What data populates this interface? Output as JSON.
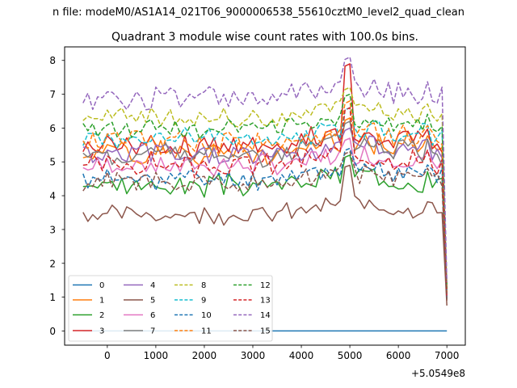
{
  "chart_data": {
    "type": "line",
    "suptitle": "n file: modeM0/AS1A14_021T06_9000006538_55610cztM0_level2_quad_clean",
    "title": "Quadrant 3 module wise count rates with 100.0s bins.",
    "xlabel": "",
    "ylabel": "",
    "x_offset_text": "+5.0549e8",
    "xlim": [
      -880,
      7380
    ],
    "ylim": [
      -0.42,
      8.4
    ],
    "x_ticks": [
      0,
      1000,
      2000,
      3000,
      4000,
      5000,
      6000,
      7000
    ],
    "x_tick_labels": [
      "0",
      "1000",
      "2000",
      "3000",
      "4000",
      "5000",
      "6000",
      "7000"
    ],
    "y_ticks": [
      0,
      1,
      2,
      3,
      4,
      5,
      6,
      7,
      8
    ],
    "y_tick_labels": [
      "0",
      "1",
      "2",
      "3",
      "4",
      "5",
      "6",
      "7",
      "8"
    ],
    "grid": false,
    "legend": "lower-left, 4 columns",
    "x": {
      "start": -500,
      "step": 100,
      "end": 7000
    },
    "series": [
      {
        "name": "0",
        "color": "#1f77b4",
        "dash": "solid",
        "base": 0.0,
        "peak": 0.0,
        "last": 0.0,
        "noise": 0.0,
        "seed": 1
      },
      {
        "name": "1",
        "color": "#ff7f0e",
        "dash": "solid",
        "base": 5.3,
        "peak": 6.3,
        "last": 1.1,
        "noise": 0.3,
        "seed": 2
      },
      {
        "name": "2",
        "color": "#2ca02c",
        "dash": "solid",
        "base": 4.3,
        "peak": 5.2,
        "last": 0.95,
        "noise": 0.25,
        "seed": 3
      },
      {
        "name": "3",
        "color": "#d62728",
        "dash": "solid",
        "base": 5.5,
        "peak": 7.9,
        "last": 1.2,
        "noise": 0.3,
        "seed": 4
      },
      {
        "name": "4",
        "color": "#9467bd",
        "dash": "solid",
        "base": 5.2,
        "peak": 6.0,
        "last": 1.05,
        "noise": 0.3,
        "seed": 5
      },
      {
        "name": "5",
        "color": "#8c564b",
        "dash": "solid",
        "base": 3.45,
        "peak": 4.9,
        "last": 0.75,
        "noise": 0.22,
        "seed": 6
      },
      {
        "name": "6",
        "color": "#e377c2",
        "dash": "solid",
        "base": 4.9,
        "peak": 5.7,
        "last": 1.0,
        "noise": 0.25,
        "seed": 7
      },
      {
        "name": "7",
        "color": "#7f7f7f",
        "dash": "solid",
        "base": 5.2,
        "peak": 6.2,
        "last": 1.1,
        "noise": 0.3,
        "seed": 8
      },
      {
        "name": "8",
        "color": "#bcbd22",
        "dash": "dashed",
        "base": 6.3,
        "peak": 7.2,
        "last": 1.3,
        "noise": 0.25,
        "seed": 9
      },
      {
        "name": "9",
        "color": "#17becf",
        "dash": "dashed",
        "base": 5.7,
        "peak": 6.6,
        "last": 1.2,
        "noise": 0.25,
        "seed": 10
      },
      {
        "name": "10",
        "color": "#1f77b4",
        "dash": "dashed",
        "base": 4.5,
        "peak": 5.4,
        "last": 0.95,
        "noise": 0.25,
        "seed": 11
      },
      {
        "name": "11",
        "color": "#ff7f0e",
        "dash": "dashed",
        "base": 5.6,
        "peak": 6.8,
        "last": 1.15,
        "noise": 0.3,
        "seed": 12
      },
      {
        "name": "12",
        "color": "#2ca02c",
        "dash": "dashed",
        "base": 6.0,
        "peak": 7.0,
        "last": 1.25,
        "noise": 0.25,
        "seed": 13
      },
      {
        "name": "13",
        "color": "#d62728",
        "dash": "dashed",
        "base": 4.9,
        "peak": 6.6,
        "last": 1.0,
        "noise": 0.28,
        "seed": 14
      },
      {
        "name": "14",
        "color": "#9467bd",
        "dash": "dashed",
        "base": 6.9,
        "peak": 8.1,
        "last": 1.45,
        "noise": 0.3,
        "seed": 15
      },
      {
        "name": "15",
        "color": "#8c564b",
        "dash": "dashed",
        "base": 4.4,
        "peak": 5.3,
        "last": 0.9,
        "noise": 0.25,
        "seed": 16
      }
    ]
  }
}
